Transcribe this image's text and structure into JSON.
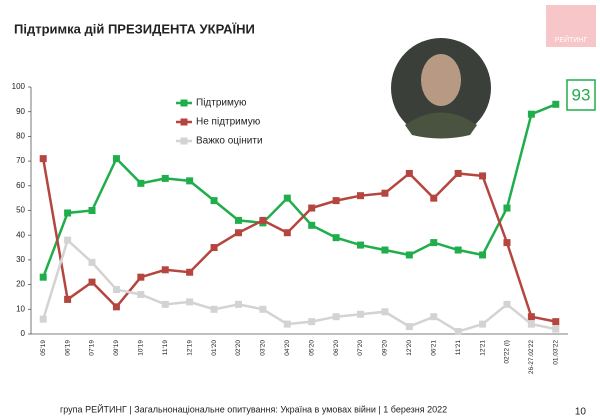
{
  "chart_data": {
    "type": "line",
    "title": "Підтримка дій ПРЕЗИДЕНТА УКРАЇНИ",
    "categories": [
      "05'19",
      "06'19",
      "07'19",
      "09'19",
      "10'19",
      "11'19",
      "12'19",
      "01'20",
      "02'20",
      "03'20",
      "04'20",
      "05'20",
      "06'20",
      "07'20",
      "09'20",
      "12'20",
      "06'21",
      "11'21",
      "12'21",
      "02'22 (I)",
      "26-27.02'22",
      "01.03'22"
    ],
    "series": [
      {
        "name": "Підтримую",
        "color": "#1fae4b",
        "values": [
          23,
          49,
          50,
          71,
          61,
          63,
          62,
          54,
          46,
          45,
          55,
          44,
          39,
          36,
          34,
          32,
          37,
          34,
          32,
          51,
          89,
          93
        ]
      },
      {
        "name": "Не підтримую",
        "color": "#b5453f",
        "values": [
          71,
          14,
          21,
          11,
          23,
          26,
          25,
          35,
          41,
          46,
          41,
          51,
          54,
          56,
          57,
          65,
          55,
          65,
          64,
          37,
          7,
          5
        ]
      },
      {
        "name": "Важко оцінити",
        "color": "#d3d3d3",
        "values": [
          6,
          38,
          29,
          18,
          16,
          12,
          13,
          10,
          12,
          10,
          4,
          5,
          7,
          8,
          9,
          3,
          7,
          1,
          4,
          12,
          4,
          2
        ]
      }
    ],
    "ylim": [
      0,
      100
    ],
    "yticks": [
      0,
      10,
      20,
      30,
      40,
      50,
      60,
      70,
      80,
      90,
      100
    ],
    "grid": false
  },
  "logo": "РЕЙТИНГ",
  "footer": "група РЕЙТИНГ | Загальнонаціональне опитування: Україна в умовах війни | 1 березня 2022",
  "page_number": "10"
}
